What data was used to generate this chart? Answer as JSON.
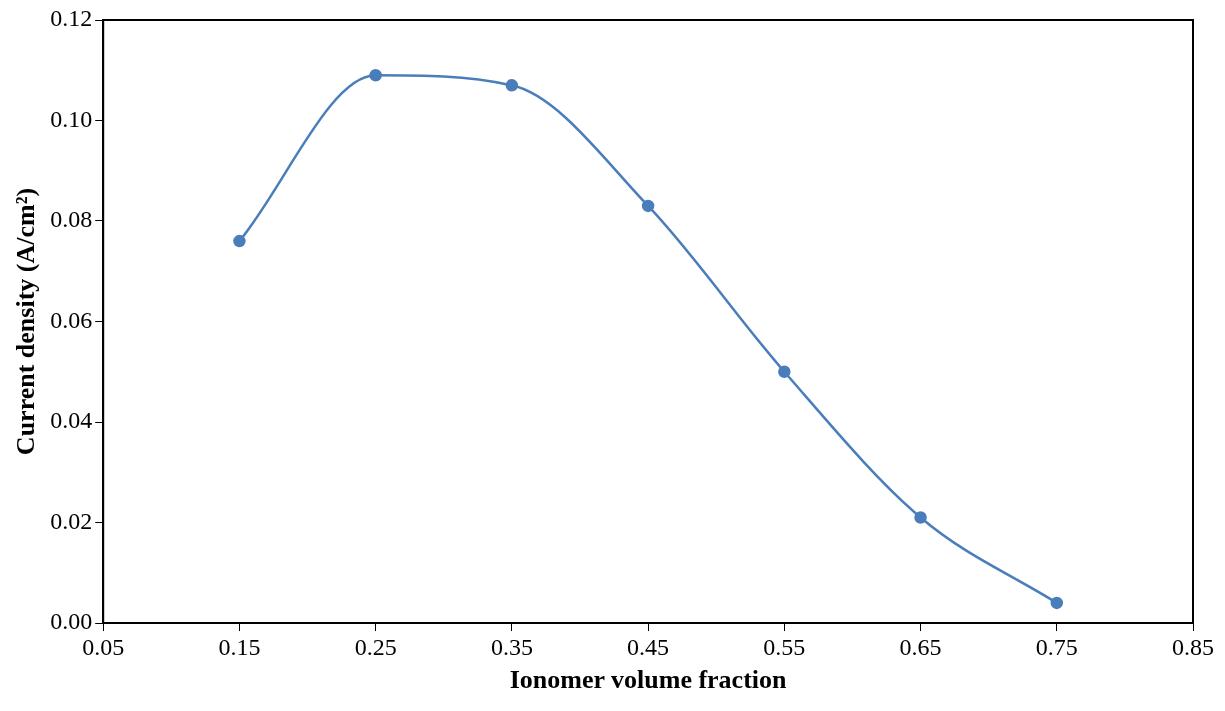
{
  "chart_data": {
    "type": "line",
    "xlabel": "Ionomer volume fraction",
    "ylabel": "Current density (A/cm²)",
    "x": [
      0.15,
      0.25,
      0.35,
      0.45,
      0.55,
      0.65,
      0.75
    ],
    "series": [
      {
        "color": "#4a7ebb",
        "values": [
          0.076,
          0.109,
          0.107,
          0.083,
          0.05,
          0.021,
          0.004
        ]
      }
    ],
    "xlim": [
      0.05,
      0.85
    ],
    "xticks": [
      0.05,
      0.15,
      0.25,
      0.35,
      0.45,
      0.55,
      0.65,
      0.75,
      0.85
    ],
    "ylim": [
      0,
      0.12
    ],
    "yticks": [
      {
        "value": 0,
        "label": "0.00"
      },
      {
        "value": 0.02,
        "label": "0.02"
      },
      {
        "value": 0.04,
        "label": "0.04"
      },
      {
        "value": 0.06,
        "label": "0.06"
      },
      {
        "value": 0.08,
        "label": "0.08"
      },
      {
        "value": 0.1,
        "label": "0.10"
      },
      {
        "value": 0.12,
        "label": "0.12"
      }
    ],
    "grid": false,
    "legend": false,
    "marker": "circle",
    "line_style": "solid"
  }
}
